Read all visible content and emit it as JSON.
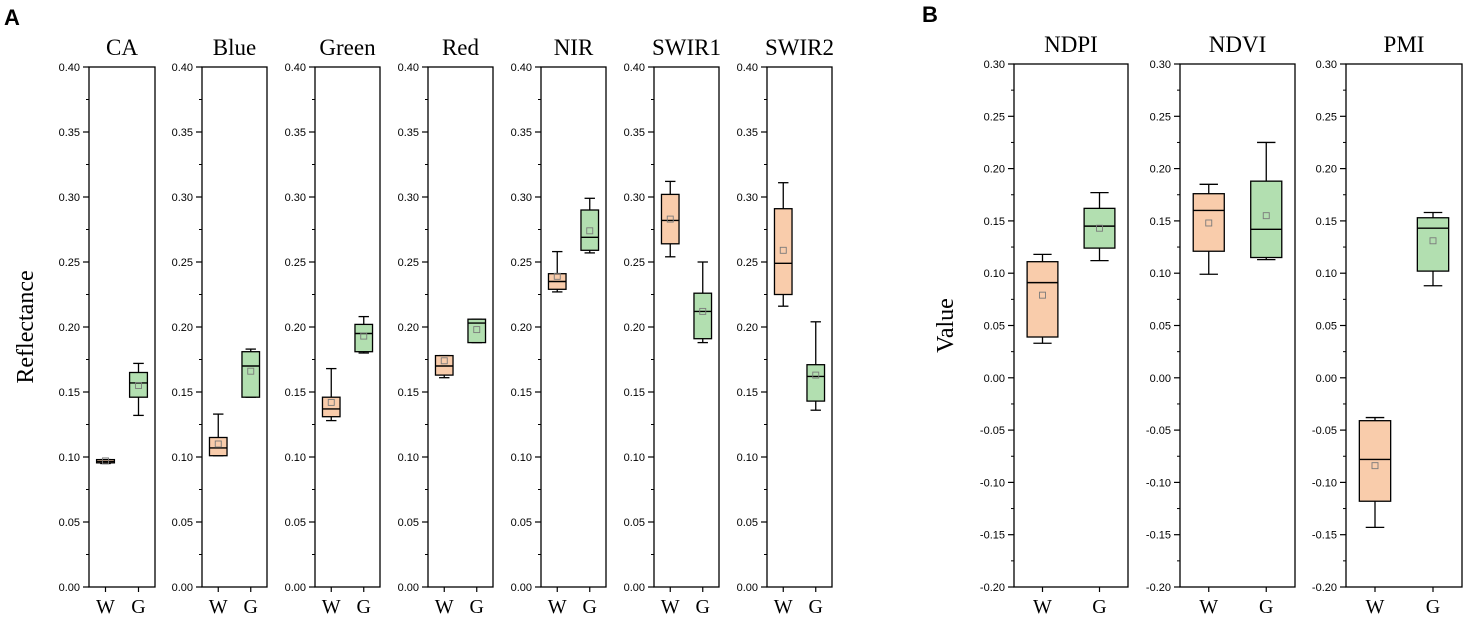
{
  "chart_data": [
    {
      "type": "box",
      "panel_label": "A",
      "ylabel": "Reflectance",
      "ylim": [
        0,
        0.4
      ],
      "yticks": [
        "0.00",
        "0.05",
        "0.10",
        "0.15",
        "0.20",
        "0.25",
        "0.30",
        "0.35",
        "0.40"
      ],
      "categories": [
        "W",
        "G"
      ],
      "subplots": [
        {
          "title": "CA",
          "boxes": [
            {
              "cat": "W",
              "min": 0.095,
              "q1": 0.0955,
              "median": 0.0965,
              "q3": 0.098,
              "max": 0.098,
              "mean": 0.097
            },
            {
              "cat": "G",
              "min": 0.132,
              "q1": 0.146,
              "median": 0.157,
              "q3": 0.165,
              "max": 0.172,
              "mean": 0.155
            }
          ]
        },
        {
          "title": "Blue",
          "boxes": [
            {
              "cat": "W",
              "min": 0.101,
              "q1": 0.101,
              "median": 0.107,
              "q3": 0.115,
              "max": 0.133,
              "mean": 0.11
            },
            {
              "cat": "G",
              "min": 0.146,
              "q1": 0.146,
              "median": 0.17,
              "q3": 0.181,
              "max": 0.183,
              "mean": 0.166
            }
          ]
        },
        {
          "title": "Green",
          "boxes": [
            {
              "cat": "W",
              "min": 0.128,
              "q1": 0.131,
              "median": 0.137,
              "q3": 0.146,
              "max": 0.168,
              "mean": 0.142
            },
            {
              "cat": "G",
              "min": 0.18,
              "q1": 0.181,
              "median": 0.195,
              "q3": 0.202,
              "max": 0.208,
              "mean": 0.193
            }
          ]
        },
        {
          "title": "Red",
          "boxes": [
            {
              "cat": "W",
              "min": 0.161,
              "q1": 0.163,
              "median": 0.17,
              "q3": 0.178,
              "max": 0.178,
              "mean": 0.174
            },
            {
              "cat": "G",
              "min": 0.188,
              "q1": 0.188,
              "median": 0.203,
              "q3": 0.206,
              "max": 0.206,
              "mean": 0.198
            }
          ]
        },
        {
          "title": "NIR",
          "boxes": [
            {
              "cat": "W",
              "min": 0.227,
              "q1": 0.229,
              "median": 0.235,
              "q3": 0.241,
              "max": 0.258,
              "mean": 0.239
            },
            {
              "cat": "G",
              "min": 0.257,
              "q1": 0.259,
              "median": 0.269,
              "q3": 0.29,
              "max": 0.299,
              "mean": 0.274
            }
          ]
        },
        {
          "title": "SWIR1",
          "boxes": [
            {
              "cat": "W",
              "min": 0.254,
              "q1": 0.264,
              "median": 0.282,
              "q3": 0.302,
              "max": 0.312,
              "mean": 0.283
            },
            {
              "cat": "G",
              "min": 0.188,
              "q1": 0.191,
              "median": 0.212,
              "q3": 0.226,
              "max": 0.25,
              "mean": 0.212
            }
          ]
        },
        {
          "title": "SWIR2",
          "boxes": [
            {
              "cat": "W",
              "min": 0.216,
              "q1": 0.225,
              "median": 0.249,
              "q3": 0.291,
              "max": 0.311,
              "mean": 0.259
            },
            {
              "cat": "G",
              "min": 0.136,
              "q1": 0.143,
              "median": 0.162,
              "q3": 0.171,
              "max": 0.204,
              "mean": 0.163
            }
          ]
        }
      ]
    },
    {
      "type": "box",
      "panel_label": "B",
      "ylabel": "Value",
      "ylim": [
        -0.2,
        0.3
      ],
      "yticks": [
        "-0.20",
        "-0.15",
        "-0.10",
        "-0.05",
        "0.00",
        "0.05",
        "0.10",
        "0.15",
        "0.20",
        "0.25",
        "0.30"
      ],
      "categories": [
        "W",
        "G"
      ],
      "subplots": [
        {
          "title": "NDPI",
          "boxes": [
            {
              "cat": "W",
              "min": 0.033,
              "q1": 0.039,
              "median": 0.091,
              "q3": 0.111,
              "max": 0.118,
              "mean": 0.079
            },
            {
              "cat": "G",
              "min": 0.112,
              "q1": 0.124,
              "median": 0.145,
              "q3": 0.162,
              "max": 0.177,
              "mean": 0.143
            }
          ]
        },
        {
          "title": "NDVI",
          "boxes": [
            {
              "cat": "W",
              "min": 0.099,
              "q1": 0.121,
              "median": 0.16,
              "q3": 0.176,
              "max": 0.185,
              "mean": 0.148
            },
            {
              "cat": "G",
              "min": 0.113,
              "q1": 0.115,
              "median": 0.142,
              "q3": 0.188,
              "max": 0.225,
              "mean": 0.155
            }
          ]
        },
        {
          "title": "PMI",
          "boxes": [
            {
              "cat": "W",
              "min": -0.143,
              "q1": -0.118,
              "median": -0.078,
              "q3": -0.041,
              "max": -0.038,
              "mean": -0.084
            },
            {
              "cat": "G",
              "min": 0.088,
              "q1": 0.102,
              "median": 0.143,
              "q3": 0.153,
              "max": 0.158,
              "mean": 0.131
            }
          ]
        }
      ]
    }
  ],
  "colors": {
    "W_fill": "#f9ccab",
    "G_fill": "#b2dfb0",
    "stroke": "#000000",
    "mean_marker": "#7a7a7a"
  }
}
